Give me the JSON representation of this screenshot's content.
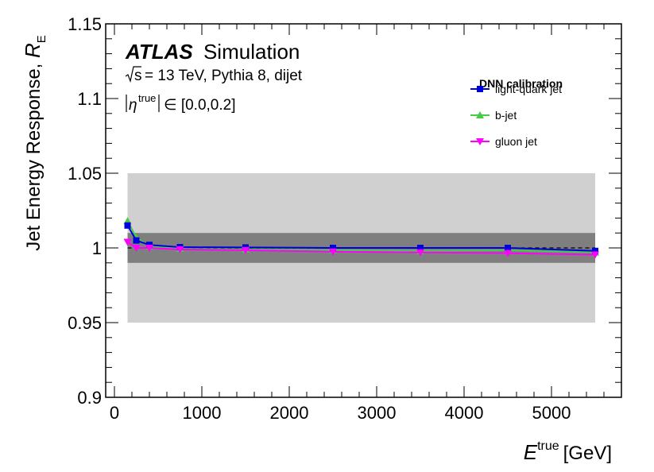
{
  "chart_data": {
    "type": "line",
    "title": "ATLAS Simulation",
    "experiment": "ATLAS",
    "experiment_suffix": "Simulation",
    "sqrt_s": "s",
    "info_line": "= 13 TeV, Pythia 8, dijet",
    "eta_prefix": "η",
    "eta_sup": "true",
    "eta_range": "∈ [0.0,0.2]",
    "xlabel": "E",
    "xlabel_sup": "true",
    "xlabel_unit": "[GeV]",
    "ylabel": "Jet Energy Response, ",
    "ylabel_symbol": "R",
    "ylabel_sub": "E",
    "xlim": [
      -100,
      5800
    ],
    "ylim": [
      0.9,
      1.15
    ],
    "xticks": [
      0,
      1000,
      2000,
      3000,
      4000,
      5000
    ],
    "yticks": [
      0.9,
      0.95,
      1,
      1.05,
      1.1,
      1.15
    ],
    "ytick_labels": [
      "0.9",
      "0.95",
      "1",
      "1.05",
      "1.1",
      "1.15"
    ],
    "bands": [
      {
        "name": "±5%",
        "x": [
          150,
          5500
        ],
        "y": [
          0.95,
          1.05
        ],
        "color": "#d0d0d0"
      },
      {
        "name": "±1%",
        "x": [
          150,
          5500
        ],
        "y": [
          0.99,
          1.01
        ],
        "color": "#7f7f7f"
      }
    ],
    "reference_line": {
      "y": 1.0,
      "style": "dashed"
    },
    "legend": {
      "title": "DNN calibration",
      "position": "top-right"
    },
    "series": [
      {
        "name": "light-quark jet",
        "color": "#0000dd",
        "marker": "square",
        "x": [
          150,
          250,
          400,
          750,
          1500,
          2500,
          3500,
          4500,
          5500
        ],
        "y": [
          1.015,
          1.005,
          1.002,
          1.0005,
          1.0003,
          1.0,
          1.0,
          1.0,
          0.998
        ]
      },
      {
        "name": "b-jet",
        "color": "#44cc44",
        "marker": "triangle-up",
        "x": [
          150,
          250,
          400,
          750,
          1500,
          2500,
          3500,
          4500,
          5500
        ],
        "y": [
          1.018,
          1.007,
          1.001,
          0.9995,
          0.999,
          0.9985,
          0.998,
          0.9985,
          0.997
        ]
      },
      {
        "name": "gluon jet",
        "color": "#ff00ff",
        "marker": "triangle-down",
        "x": [
          150,
          250,
          400,
          750,
          1500,
          2500,
          3500,
          4500,
          5500
        ],
        "y": [
          1.004,
          1.0,
          1.0,
          0.999,
          0.9985,
          0.9975,
          0.997,
          0.9965,
          0.9955
        ]
      }
    ]
  }
}
